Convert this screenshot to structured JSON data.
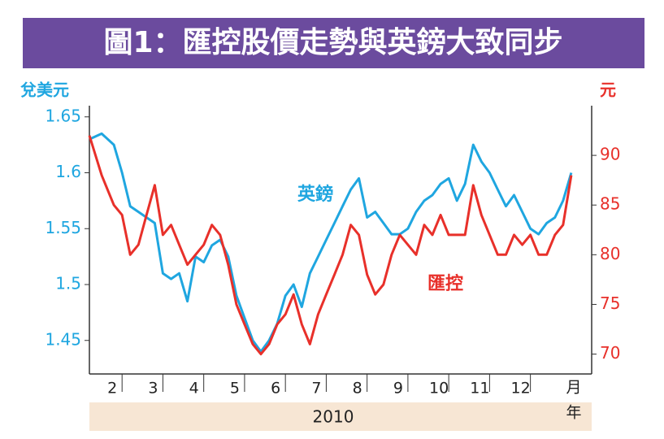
{
  "chart_data": {
    "type": "line",
    "title": "圖1：匯控股價走勢與英鎊大致同步",
    "ylabel": "兌美元",
    "y2label": "元",
    "xlabel": "2010",
    "x_unit": [
      "月",
      "年"
    ],
    "x": [
      1.2,
      1.5,
      1.8,
      2.0,
      2.2,
      2.4,
      2.6,
      2.8,
      3.0,
      3.2,
      3.4,
      3.6,
      3.8,
      4.0,
      4.2,
      4.4,
      4.6,
      4.8,
      5.0,
      5.2,
      5.4,
      5.6,
      5.8,
      6.0,
      6.2,
      6.4,
      6.6,
      6.8,
      7.0,
      7.2,
      7.4,
      7.6,
      7.8,
      8.0,
      8.2,
      8.4,
      8.6,
      8.8,
      9.0,
      9.2,
      9.4,
      9.6,
      9.8,
      10.0,
      10.2,
      10.4,
      10.6,
      10.8,
      11.0,
      11.2,
      11.4,
      11.6,
      11.8,
      12.0,
      12.2,
      12.4,
      12.6,
      12.8,
      13.0
    ],
    "xlim": [
      1.2,
      13.5
    ],
    "xticks": [
      2,
      3,
      4,
      5,
      6,
      7,
      8,
      9,
      10,
      11,
      12
    ],
    "ylim": [
      1.42,
      1.66
    ],
    "yticks": [
      1.65,
      1.6,
      1.55,
      1.5,
      1.45
    ],
    "y2lim": [
      68,
      95
    ],
    "y2ticks": [
      90,
      85,
      80,
      75,
      70
    ],
    "series": [
      {
        "name": "英鎊",
        "color": "#1fa6e0",
        "axis": "y",
        "values": [
          1.63,
          1.635,
          1.625,
          1.6,
          1.57,
          1.565,
          1.56,
          1.555,
          1.51,
          1.505,
          1.51,
          1.485,
          1.525,
          1.52,
          1.535,
          1.54,
          1.525,
          1.49,
          1.47,
          1.45,
          1.44,
          1.45,
          1.465,
          1.49,
          1.5,
          1.48,
          1.51,
          1.525,
          1.54,
          1.555,
          1.57,
          1.585,
          1.595,
          1.56,
          1.565,
          1.555,
          1.545,
          1.545,
          1.55,
          1.565,
          1.575,
          1.58,
          1.59,
          1.595,
          1.575,
          1.59,
          1.625,
          1.61,
          1.6,
          1.585,
          1.57,
          1.58,
          1.565,
          1.55,
          1.545,
          1.555,
          1.56,
          1.575,
          1.6
        ]
      },
      {
        "name": "匯控",
        "color": "#e8302a",
        "axis": "y2",
        "values": [
          92,
          88,
          85,
          84,
          80,
          81,
          84,
          87,
          82,
          83,
          81,
          79,
          80,
          81,
          83,
          82,
          79,
          75,
          73,
          71,
          70,
          71,
          73,
          74,
          76,
          73,
          71,
          74,
          76,
          78,
          80,
          83,
          82,
          78,
          76,
          77,
          80,
          82,
          81,
          80,
          83,
          82,
          84,
          82,
          82,
          82,
          87,
          84,
          82,
          80,
          80,
          82,
          81,
          82,
          80,
          80,
          82,
          83,
          88
        ]
      }
    ]
  }
}
